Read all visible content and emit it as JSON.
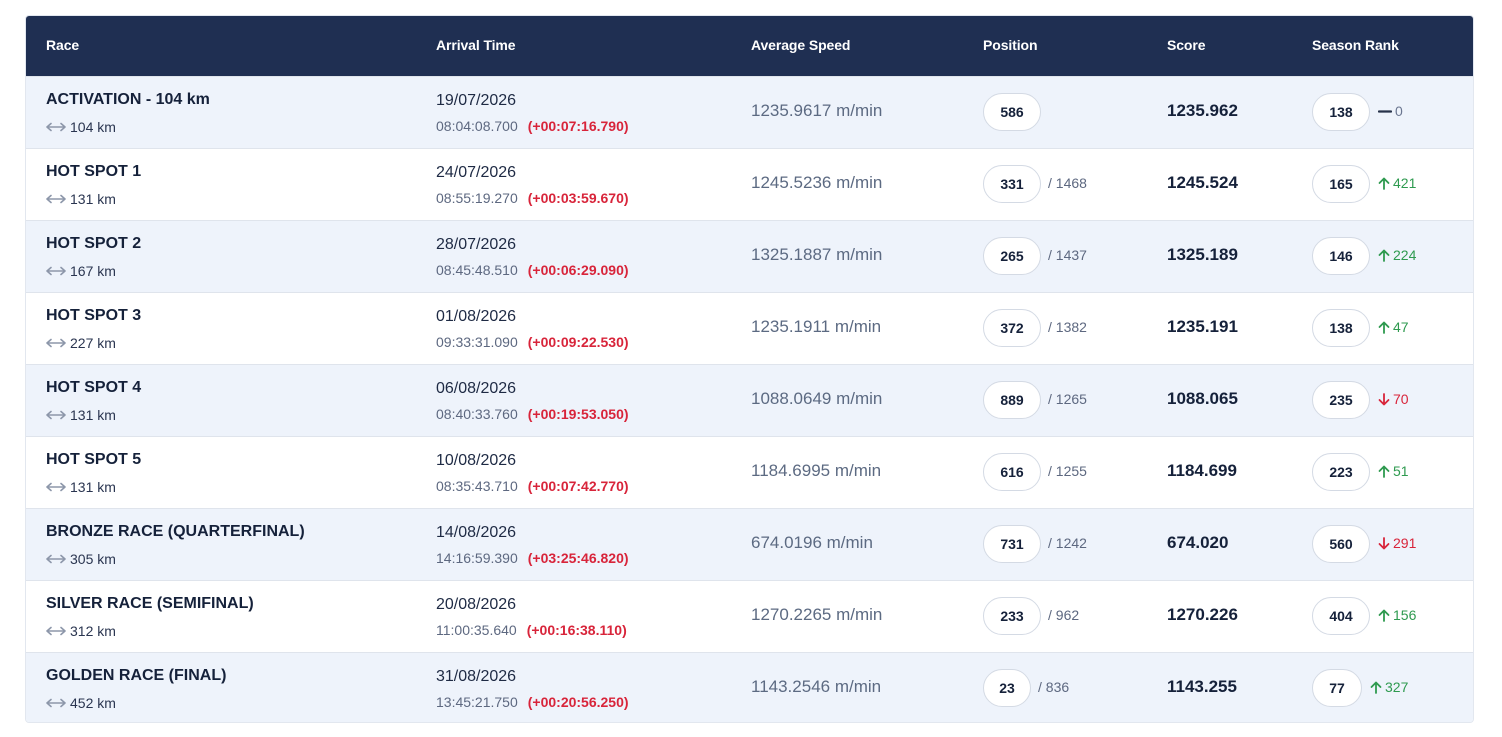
{
  "header": {
    "race": "Race",
    "arrival_time": "Arrival Time",
    "average_speed": "Average Speed",
    "position": "Position",
    "score": "Score",
    "season_rank": "Season Rank"
  },
  "colors": {
    "header_bg": "#1f2f52",
    "row_alt_bg": "#eef3fb",
    "delta_red": "#d8243a",
    "trend_up_green": "#2e9a4f",
    "trend_down_red": "#d8243a"
  },
  "rows": [
    {
      "race": "ACTIVATION - 104 km",
      "distance": "104 km",
      "date": "19/07/2026",
      "time": "08:04:08.700",
      "delta": "(+00:07:16.790)",
      "speed": "1235.9617 m/min",
      "position": "586",
      "total": "",
      "score": "1235.962",
      "rank": "138",
      "change": "0",
      "trend": "flat",
      "trend_icon": "dash-icon"
    },
    {
      "race": "HOT SPOT 1",
      "distance": "131 km",
      "date": "24/07/2026",
      "time": "08:55:19.270",
      "delta": "(+00:03:59.670)",
      "speed": "1245.5236 m/min",
      "position": "331",
      "total": "/ 1468",
      "score": "1245.524",
      "rank": "165",
      "change": "421",
      "trend": "up",
      "trend_icon": "arrow-up-icon"
    },
    {
      "race": "HOT SPOT 2",
      "distance": "167 km",
      "date": "28/07/2026",
      "time": "08:45:48.510",
      "delta": "(+00:06:29.090)",
      "speed": "1325.1887 m/min",
      "position": "265",
      "total": "/ 1437",
      "score": "1325.189",
      "rank": "146",
      "change": "224",
      "trend": "up",
      "trend_icon": "arrow-up-icon"
    },
    {
      "race": "HOT SPOT 3",
      "distance": "227 km",
      "date": "01/08/2026",
      "time": "09:33:31.090",
      "delta": "(+00:09:22.530)",
      "speed": "1235.1911 m/min",
      "position": "372",
      "total": "/ 1382",
      "score": "1235.191",
      "rank": "138",
      "change": "47",
      "trend": "up",
      "trend_icon": "arrow-up-icon"
    },
    {
      "race": "HOT SPOT 4",
      "distance": "131 km",
      "date": "06/08/2026",
      "time": "08:40:33.760",
      "delta": "(+00:19:53.050)",
      "speed": "1088.0649 m/min",
      "position": "889",
      "total": "/ 1265",
      "score": "1088.065",
      "rank": "235",
      "change": "70",
      "trend": "down",
      "trend_icon": "arrow-down-icon"
    },
    {
      "race": "HOT SPOT 5",
      "distance": "131 km",
      "date": "10/08/2026",
      "time": "08:35:43.710",
      "delta": "(+00:07:42.770)",
      "speed": "1184.6995 m/min",
      "position": "616",
      "total": "/ 1255",
      "score": "1184.699",
      "rank": "223",
      "change": "51",
      "trend": "up",
      "trend_icon": "arrow-up-icon"
    },
    {
      "race": "BRONZE RACE (QUARTERFINAL)",
      "distance": "305 km",
      "date": "14/08/2026",
      "time": "14:16:59.390",
      "delta": "(+03:25:46.820)",
      "speed": "674.0196 m/min",
      "position": "731",
      "total": "/ 1242",
      "score": "674.020",
      "rank": "560",
      "change": "291",
      "trend": "down",
      "trend_icon": "arrow-down-icon"
    },
    {
      "race": "SILVER RACE (SEMIFINAL)",
      "distance": "312 km",
      "date": "20/08/2026",
      "time": "11:00:35.640",
      "delta": "(+00:16:38.110)",
      "speed": "1270.2265 m/min",
      "position": "233",
      "total": "/ 962",
      "score": "1270.226",
      "rank": "404",
      "change": "156",
      "trend": "up",
      "trend_icon": "arrow-up-icon"
    },
    {
      "race": "GOLDEN RACE (FINAL)",
      "distance": "452 km",
      "date": "31/08/2026",
      "time": "13:45:21.750",
      "delta": "(+00:20:56.250)",
      "speed": "1143.2546 m/min",
      "position": "23",
      "total": "/ 836",
      "score": "1143.255",
      "rank": "77",
      "change": "327",
      "trend": "up",
      "trend_icon": "arrow-up-icon"
    }
  ]
}
